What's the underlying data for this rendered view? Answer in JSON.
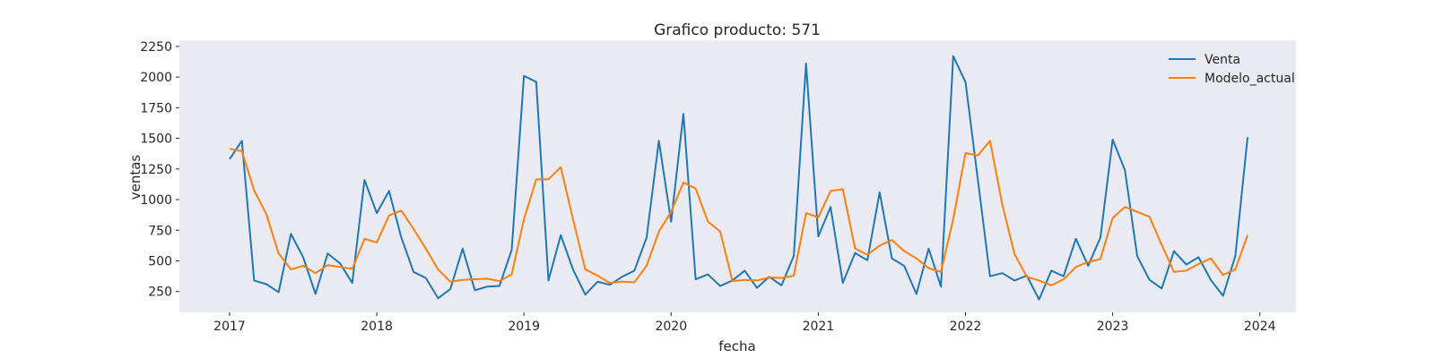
{
  "chart_data": {
    "type": "line",
    "title": "Grafico producto: 571",
    "xlabel": "fecha",
    "ylabel": "ventas",
    "x_start": "2017-01",
    "x_ticks": [
      "2017",
      "2018",
      "2019",
      "2020",
      "2021",
      "2022",
      "2023",
      "2024"
    ],
    "y_ticks": [
      250,
      500,
      750,
      1000,
      1250,
      1500,
      1750,
      2000,
      2250
    ],
    "ylim": [
      80,
      2300
    ],
    "xlim": [
      "2016-09",
      "2024-04"
    ],
    "grid": false,
    "background": "#eaeaf2",
    "legend_position": "top-right",
    "series": [
      {
        "name": "Venta",
        "color": "#1f77b4",
        "values": [
          1330,
          1480,
          340,
          310,
          245,
          720,
          530,
          230,
          560,
          480,
          320,
          1160,
          890,
          1070,
          690,
          410,
          360,
          195,
          270,
          600,
          260,
          290,
          295,
          590,
          2010,
          1960,
          340,
          710,
          430,
          225,
          330,
          305,
          370,
          420,
          690,
          1480,
          820,
          1700,
          350,
          390,
          295,
          340,
          420,
          280,
          370,
          300,
          540,
          2110,
          700,
          940,
          320,
          565,
          505,
          1060,
          520,
          460,
          230,
          600,
          290,
          2170,
          1960,
          1170,
          375,
          400,
          340,
          380,
          185,
          420,
          375,
          680,
          460,
          690,
          1490,
          1240,
          540,
          345,
          275,
          580,
          470,
          530,
          345,
          215,
          540,
          1510
        ]
      },
      {
        "name": "Modelo_actual",
        "color": "#ff7f0e",
        "values": [
          1415,
          1395,
          1075,
          880,
          560,
          430,
          460,
          400,
          465,
          450,
          435,
          680,
          650,
          870,
          910,
          760,
          600,
          430,
          330,
          345,
          350,
          355,
          335,
          390,
          840,
          1165,
          1165,
          1265,
          840,
          430,
          380,
          320,
          330,
          325,
          460,
          740,
          900,
          1140,
          1090,
          820,
          740,
          335,
          345,
          340,
          365,
          360,
          380,
          890,
          855,
          1070,
          1085,
          600,
          550,
          625,
          670,
          580,
          520,
          440,
          410,
          840,
          1380,
          1360,
          1480,
          960,
          555,
          370,
          340,
          300,
          350,
          450,
          490,
          515,
          850,
          940,
          900,
          860,
          630,
          410,
          420,
          475,
          520,
          385,
          430,
          710
        ]
      }
    ]
  }
}
